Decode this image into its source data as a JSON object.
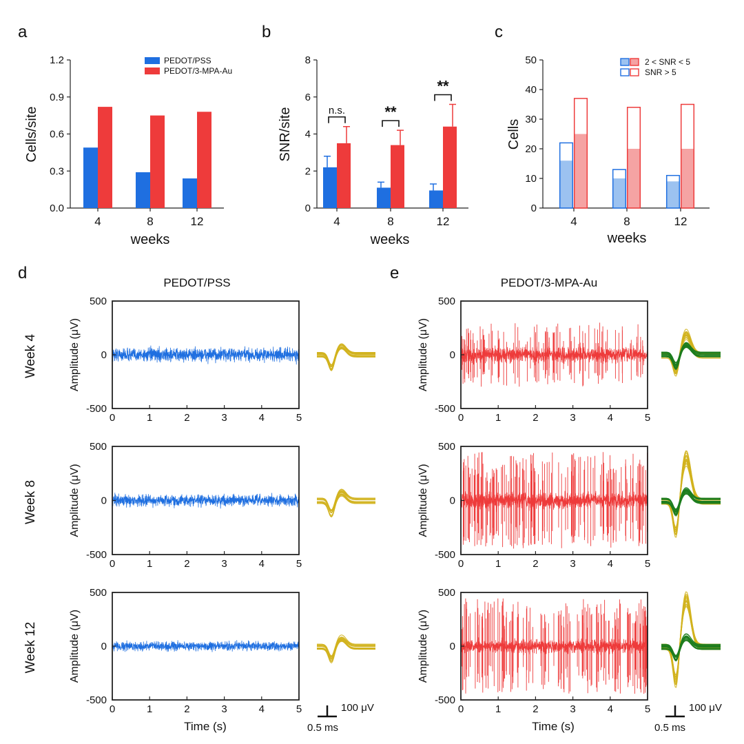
{
  "panel_labels": [
    "a",
    "b",
    "c",
    "d",
    "e"
  ],
  "colors": {
    "pss": "#1f6fe0",
    "mpa": "#ee3b3b",
    "pss_light": "#9cc2f0",
    "mpa_light": "#f5a3a3",
    "spike_yellow": "#d2b31e",
    "spike_green": "#1e7d1e"
  },
  "chart_data": [
    {
      "panel": "a",
      "type": "bar",
      "categories": [
        "4",
        "8",
        "12"
      ],
      "xlabel": "weeks",
      "ylabel": "Cells/site",
      "ylim": [
        0,
        1.2
      ],
      "yticks": [
        "0.0",
        "0.3",
        "0.6",
        "0.9",
        "1.2"
      ],
      "legend_position": "top-right",
      "series": [
        {
          "name": "PEDOT/PSS",
          "values": [
            0.49,
            0.29,
            0.24
          ]
        },
        {
          "name": "PEDOT/3-MPA-Au",
          "values": [
            0.82,
            0.75,
            0.78
          ]
        }
      ]
    },
    {
      "panel": "b",
      "type": "bar",
      "categories": [
        "4",
        "8",
        "12"
      ],
      "xlabel": "weeks",
      "ylabel": "SNR/site",
      "ylim": [
        0,
        8
      ],
      "yticks": [
        "0",
        "2",
        "4",
        "6",
        "8"
      ],
      "series": [
        {
          "values": [
            2.2,
            1.1,
            0.95
          ],
          "errors": [
            0.6,
            0.3,
            0.35
          ]
        },
        {
          "values": [
            3.5,
            3.4,
            4.4
          ],
          "errors": [
            0.9,
            0.8,
            1.2
          ]
        }
      ],
      "significance": [
        "n.s.",
        "**",
        "**"
      ]
    },
    {
      "panel": "c",
      "type": "bar",
      "categories": [
        "4",
        "8",
        "12"
      ],
      "xlabel": "weeks",
      "ylabel": "Cells",
      "ylim": [
        0,
        50
      ],
      "yticks": [
        "0",
        "10",
        "20",
        "30",
        "40",
        "50"
      ],
      "legend_position": "top-right",
      "legend": [
        "2 < SNR < 5",
        "SNR > 5"
      ],
      "series": [
        {
          "group": "PEDOT/PSS",
          "low_snr": [
            16,
            10,
            9
          ],
          "total": [
            22,
            13,
            11
          ]
        },
        {
          "group": "PEDOT/3-MPA-Au",
          "low_snr": [
            25,
            20,
            20
          ],
          "total": [
            37,
            34,
            35
          ]
        }
      ]
    },
    {
      "panel": "d",
      "type": "line",
      "title": "PEDOT/PSS",
      "rows": [
        "Week 4",
        "Week 8",
        "Week 12"
      ],
      "xlabel": "Time (s)",
      "ylabel": "Amplitude (μV)",
      "xlim": [
        0,
        5
      ],
      "ylim": [
        -500,
        500
      ],
      "xticks": [
        "0",
        "1",
        "2",
        "3",
        "4",
        "5"
      ],
      "yticks": [
        "500",
        "0",
        "-500"
      ],
      "noise_amplitude_uv": [
        60,
        50,
        40
      ]
    },
    {
      "panel": "e",
      "type": "line",
      "title": "PEDOT/3-MPA-Au",
      "rows": [
        "Week 4",
        "Week 8",
        "Week 12"
      ],
      "xlabel": "Time (s)",
      "ylabel": "Amplitude (μV)",
      "xlim": [
        0,
        5
      ],
      "ylim": [
        -500,
        500
      ],
      "xticks": [
        "0",
        "1",
        "2",
        "3",
        "4",
        "5"
      ],
      "yticks": [
        "500",
        "0",
        "-500"
      ],
      "noise_amplitude_uv": [
        70,
        70,
        60
      ],
      "spike_peak_uv": [
        300,
        450,
        450
      ]
    }
  ],
  "scale_bar": {
    "amplitude": "100 μV",
    "time": "0.5 ms"
  }
}
